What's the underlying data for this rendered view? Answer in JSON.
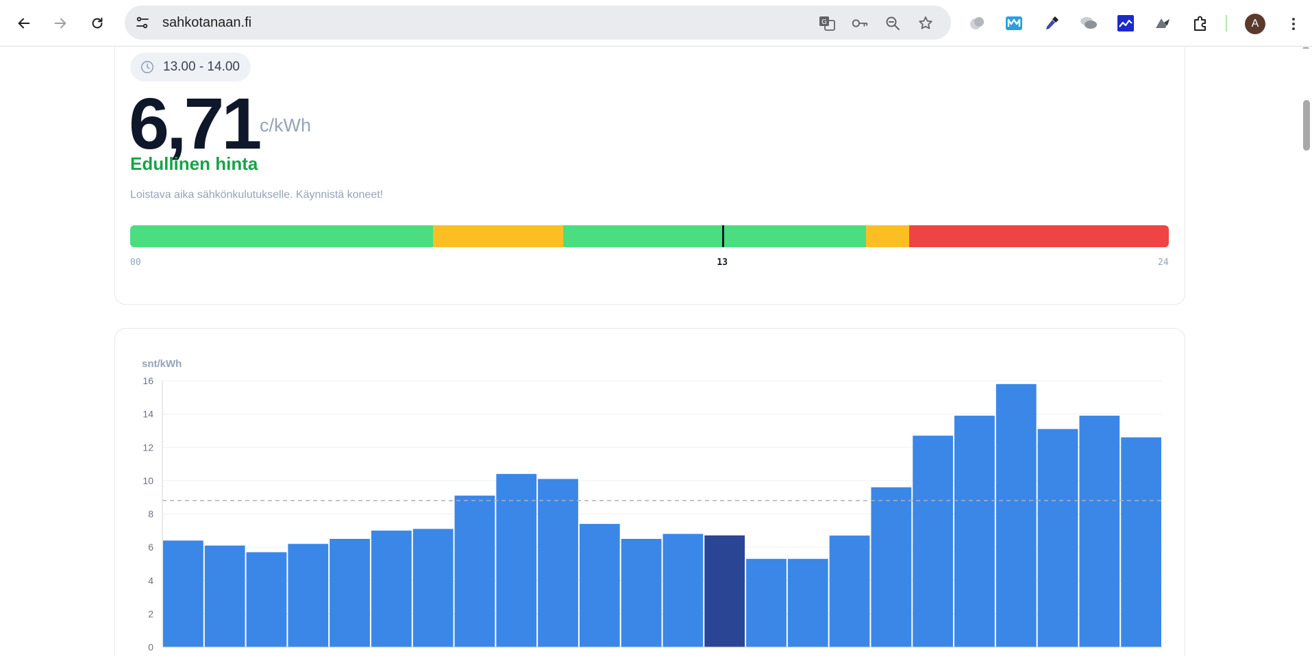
{
  "browser": {
    "url": "sahkotanaan.fi",
    "icons": {
      "back": "arrow-left-icon",
      "forward": "arrow-right-icon",
      "reload": "reload-icon",
      "site_info": "tune-icon",
      "translate": "translate-icon",
      "password": "key-icon",
      "zoom": "zoom-out-icon",
      "bookmark": "star-icon",
      "extensions": [
        "grey-blob-extension-icon",
        "m-logo-extension-icon",
        "eyedropper-extension-icon",
        "chat-bubbles-extension-icon",
        "chart-extension-icon",
        "bird-extension-icon",
        "puzzle-icon"
      ],
      "menu": "kebab-menu-icon"
    },
    "avatar_letter": "A"
  },
  "current": {
    "time_range": "13.00 - 14.00",
    "price": "6,71",
    "unit": "c/kWh",
    "label": "Edullinen hinta",
    "description": "Loistava aika sähkönkulutukselle. Käynnistä koneet!",
    "label_color": "#16a34a"
  },
  "day_bar": {
    "segments": [
      {
        "level": "cheap",
        "color": "#4ade80",
        "hours": 7
      },
      {
        "level": "medium",
        "color": "#fbbf24",
        "hours": 3
      },
      {
        "level": "cheap",
        "color": "#4ade80",
        "hours": 7
      },
      {
        "level": "medium",
        "color": "#fbbf24",
        "hours": 1
      },
      {
        "level": "expensive",
        "color": "#ef4444",
        "hours": 6
      }
    ],
    "current_hour": 13.7,
    "start_label": "00",
    "current_label": "13",
    "end_label": "24"
  },
  "chart_data": {
    "type": "bar",
    "ylabel": "snt/kWh",
    "ylim": [
      0,
      16
    ],
    "yticks": [
      0,
      2,
      4,
      6,
      8,
      10,
      12,
      14,
      16
    ],
    "average": 8.8,
    "highlight_index": 13,
    "bar_color": "#3b87e8",
    "highlight_color": "#2a4594",
    "values": [
      6.4,
      6.1,
      5.7,
      6.2,
      6.5,
      7.0,
      7.1,
      9.1,
      10.4,
      10.1,
      7.4,
      6.5,
      6.8,
      6.71,
      5.3,
      5.3,
      6.7,
      9.6,
      12.7,
      13.9,
      15.8,
      13.1,
      13.9,
      12.6
    ]
  }
}
